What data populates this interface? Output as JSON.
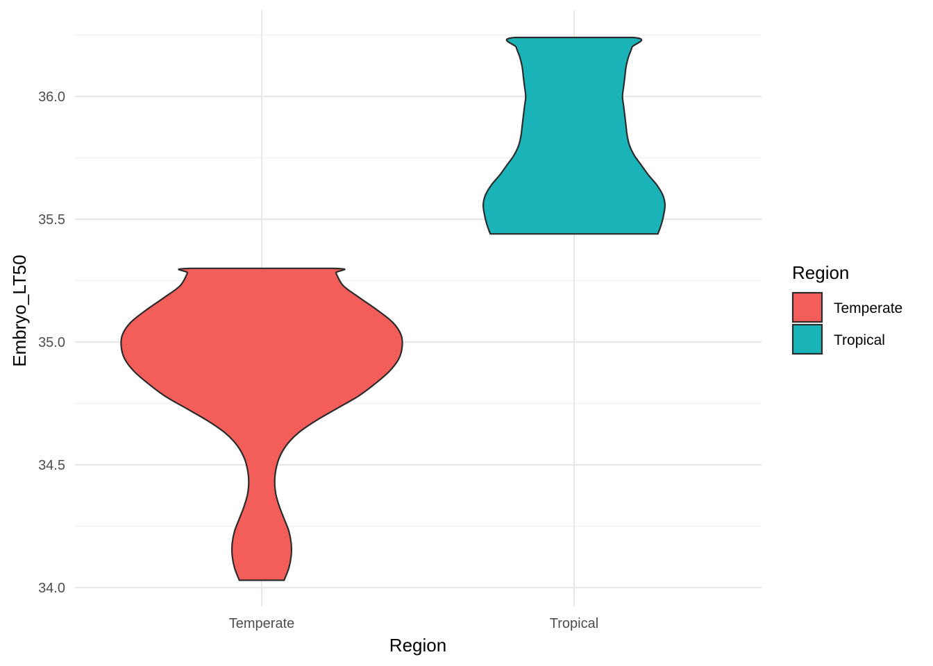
{
  "chart_data": {
    "type": "violin",
    "xlabel": "Region",
    "ylabel": "Embryo_LT50",
    "ylim": [
      34.0,
      36.25
    ],
    "y_ticks": [
      "34.0",
      "34.5",
      "35.0",
      "35.5",
      "36.0"
    ],
    "y_tick_values": [
      34.0,
      34.5,
      35.0,
      35.5,
      36.0
    ],
    "y_minor_values": [
      34.25,
      34.75,
      35.25,
      35.75,
      36.25
    ],
    "categories": [
      "Temperate",
      "Tropical"
    ],
    "grid": true,
    "legend": {
      "title": "Region",
      "position": "right",
      "entries": [
        {
          "label": "Temperate",
          "color": "#F35E5A"
        },
        {
          "label": "Tropical",
          "color": "#19B3B8"
        }
      ]
    },
    "series": [
      {
        "name": "Temperate",
        "color": "#F35E5A",
        "y_min": 34.03,
        "y_max": 35.3,
        "density_profile": [
          [
            34.03,
            0.19
          ],
          [
            34.08,
            0.23
          ],
          [
            34.13,
            0.25
          ],
          [
            34.18,
            0.25
          ],
          [
            34.23,
            0.23
          ],
          [
            34.28,
            0.19
          ],
          [
            34.33,
            0.15
          ],
          [
            34.38,
            0.12
          ],
          [
            34.43,
            0.11
          ],
          [
            34.48,
            0.12
          ],
          [
            34.53,
            0.15
          ],
          [
            34.58,
            0.21
          ],
          [
            34.63,
            0.31
          ],
          [
            34.68,
            0.46
          ],
          [
            34.73,
            0.64
          ],
          [
            34.78,
            0.82
          ],
          [
            34.83,
            0.96
          ],
          [
            34.88,
            1.08
          ],
          [
            34.93,
            1.16
          ],
          [
            34.98,
            1.19
          ],
          [
            35.03,
            1.18
          ],
          [
            35.08,
            1.11
          ],
          [
            35.13,
            0.98
          ],
          [
            35.18,
            0.83
          ],
          [
            35.23,
            0.69
          ],
          [
            35.28,
            0.63
          ],
          [
            35.3,
            0.61
          ]
        ]
      },
      {
        "name": "Tropical",
        "color": "#19B3B8",
        "y_min": 35.44,
        "y_max": 36.24,
        "density_profile": [
          [
            35.44,
            0.71
          ],
          [
            35.48,
            0.74
          ],
          [
            35.52,
            0.76
          ],
          [
            35.56,
            0.77
          ],
          [
            35.6,
            0.75
          ],
          [
            35.64,
            0.7
          ],
          [
            35.68,
            0.63
          ],
          [
            35.72,
            0.57
          ],
          [
            35.76,
            0.51
          ],
          [
            35.8,
            0.47
          ],
          [
            35.84,
            0.45
          ],
          [
            35.88,
            0.44
          ],
          [
            35.92,
            0.43
          ],
          [
            35.96,
            0.42
          ],
          [
            36.0,
            0.41
          ],
          [
            36.04,
            0.42
          ],
          [
            36.08,
            0.43
          ],
          [
            36.12,
            0.44
          ],
          [
            36.16,
            0.46
          ],
          [
            36.2,
            0.49
          ],
          [
            36.24,
            0.5
          ]
        ]
      }
    ]
  }
}
